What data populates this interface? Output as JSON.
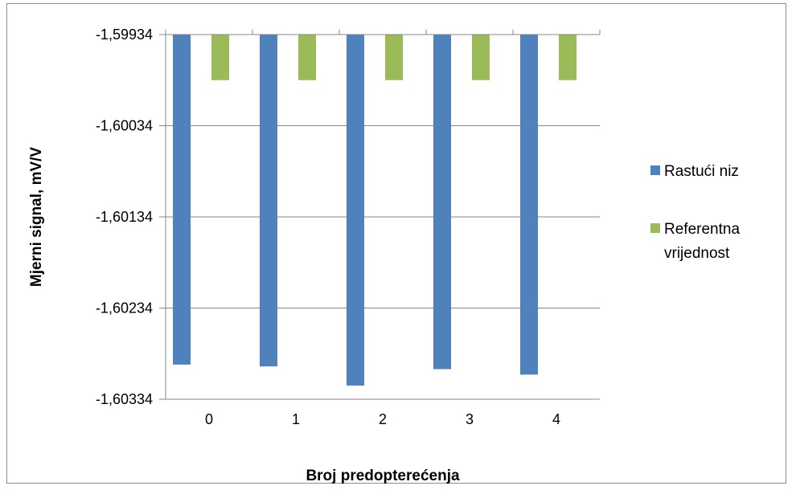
{
  "chart_data": {
    "type": "bar",
    "xlabel": "Broj predopterećenja",
    "ylabel": "Mjerni signal, mV/V",
    "categories": [
      "0",
      "1",
      "2",
      "3",
      "4"
    ],
    "ylim": [
      -1.60334,
      -1.59934
    ],
    "yticks": [
      {
        "value": -1.59934,
        "label": "-1,59934"
      },
      {
        "value": -1.60034,
        "label": "-1,60034"
      },
      {
        "value": -1.60134,
        "label": "-1,60134"
      },
      {
        "value": -1.60234,
        "label": "-1,60234"
      },
      {
        "value": -1.60334,
        "label": "-1,60334"
      }
    ],
    "series": [
      {
        "name": "Rastući niz",
        "color": "#4f81bd",
        "values": [
          -1.60296,
          -1.60298,
          -1.60319,
          -1.60301,
          -1.60307
        ]
      },
      {
        "name": "Referentna vrijednost",
        "color": "#9bbb59",
        "values": [
          -1.59984,
          -1.59984,
          -1.59984,
          -1.59984,
          -1.59984
        ]
      }
    ],
    "legend": {
      "position": "right",
      "items": [
        {
          "lines": [
            "Rastući niz"
          ]
        },
        {
          "lines": [
            "Referentna",
            "vrijednost"
          ]
        }
      ]
    },
    "grid": true,
    "bar_origin": "top"
  }
}
